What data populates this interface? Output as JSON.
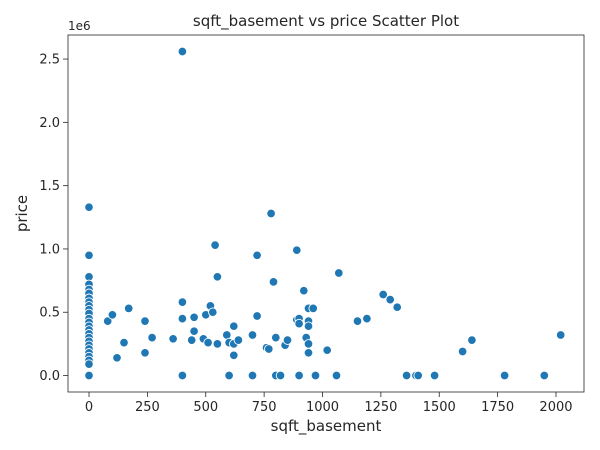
{
  "chart_data": {
    "type": "scatter",
    "title": "sqft_basement vs price Scatter Plot",
    "xlabel": "sqft_basement",
    "ylabel": "price",
    "y_offset_label": "1e6",
    "xlim": [
      -90,
      2120
    ],
    "ylim": [
      -0.13,
      2.69
    ],
    "xticks": [
      0,
      250,
      500,
      750,
      1000,
      1250,
      1500,
      1750,
      2000
    ],
    "xtick_labels": [
      "0",
      "250",
      "500",
      "750",
      "1000",
      "1250",
      "1500",
      "1750",
      "2000"
    ],
    "yticks": [
      0.0,
      0.5,
      1.0,
      1.5,
      2.0,
      2.5
    ],
    "ytick_labels": [
      "0.0",
      "0.5",
      "1.0",
      "1.5",
      "2.0",
      "2.5"
    ],
    "grid": false,
    "legend": "none",
    "point_color": "#1f77b4",
    "points": [
      [
        0,
        1.33
      ],
      [
        0,
        0.95
      ],
      [
        0,
        0.78
      ],
      [
        0,
        0.72
      ],
      [
        0,
        0.68
      ],
      [
        0,
        0.65
      ],
      [
        0,
        0.61
      ],
      [
        0,
        0.58
      ],
      [
        0,
        0.55
      ],
      [
        0,
        0.52
      ],
      [
        0,
        0.49
      ],
      [
        0,
        0.45
      ],
      [
        0,
        0.42
      ],
      [
        0,
        0.39
      ],
      [
        0,
        0.36
      ],
      [
        0,
        0.33
      ],
      [
        0,
        0.3
      ],
      [
        0,
        0.27
      ],
      [
        0,
        0.24
      ],
      [
        0,
        0.21
      ],
      [
        0,
        0.18
      ],
      [
        0,
        0.15
      ],
      [
        0,
        0.12
      ],
      [
        0,
        0.09
      ],
      [
        0,
        0.0
      ],
      [
        80,
        0.43
      ],
      [
        100,
        0.48
      ],
      [
        120,
        0.14
      ],
      [
        150,
        0.26
      ],
      [
        170,
        0.53
      ],
      [
        240,
        0.43
      ],
      [
        240,
        0.18
      ],
      [
        270,
        0.3
      ],
      [
        360,
        0.29
      ],
      [
        400,
        2.56
      ],
      [
        400,
        0.58
      ],
      [
        400,
        0.45
      ],
      [
        400,
        0.0
      ],
      [
        440,
        0.28
      ],
      [
        450,
        0.46
      ],
      [
        450,
        0.35
      ],
      [
        490,
        0.29
      ],
      [
        500,
        0.48
      ],
      [
        510,
        0.26
      ],
      [
        520,
        0.55
      ],
      [
        530,
        0.5
      ],
      [
        540,
        1.03
      ],
      [
        550,
        0.78
      ],
      [
        550,
        0.25
      ],
      [
        590,
        0.32
      ],
      [
        600,
        0.26
      ],
      [
        600,
        0.0
      ],
      [
        620,
        0.39
      ],
      [
        620,
        0.25
      ],
      [
        620,
        0.16
      ],
      [
        640,
        0.28
      ],
      [
        700,
        0.32
      ],
      [
        700,
        0.0
      ],
      [
        720,
        0.95
      ],
      [
        720,
        0.47
      ],
      [
        760,
        0.22
      ],
      [
        770,
        0.21
      ],
      [
        780,
        1.28
      ],
      [
        790,
        0.74
      ],
      [
        800,
        0.3
      ],
      [
        800,
        0.0
      ],
      [
        820,
        0.0
      ],
      [
        840,
        0.24
      ],
      [
        850,
        0.28
      ],
      [
        890,
        0.99
      ],
      [
        890,
        0.44
      ],
      [
        900,
        0.45
      ],
      [
        900,
        0.41
      ],
      [
        900,
        0.0
      ],
      [
        920,
        0.67
      ],
      [
        930,
        0.3
      ],
      [
        940,
        0.53
      ],
      [
        940,
        0.43
      ],
      [
        940,
        0.39
      ],
      [
        940,
        0.25
      ],
      [
        940,
        0.18
      ],
      [
        960,
        0.53
      ],
      [
        970,
        0.0
      ],
      [
        1020,
        0.2
      ],
      [
        1060,
        0.0
      ],
      [
        1070,
        0.81
      ],
      [
        1150,
        0.43
      ],
      [
        1190,
        0.45
      ],
      [
        1260,
        0.64
      ],
      [
        1290,
        0.6
      ],
      [
        1320,
        0.54
      ],
      [
        1360,
        0.0
      ],
      [
        1400,
        0.0
      ],
      [
        1410,
        0.0
      ],
      [
        1480,
        0.0
      ],
      [
        1600,
        0.19
      ],
      [
        1640,
        0.28
      ],
      [
        1780,
        0.0
      ],
      [
        1950,
        0.0
      ],
      [
        2020,
        0.32
      ]
    ]
  }
}
